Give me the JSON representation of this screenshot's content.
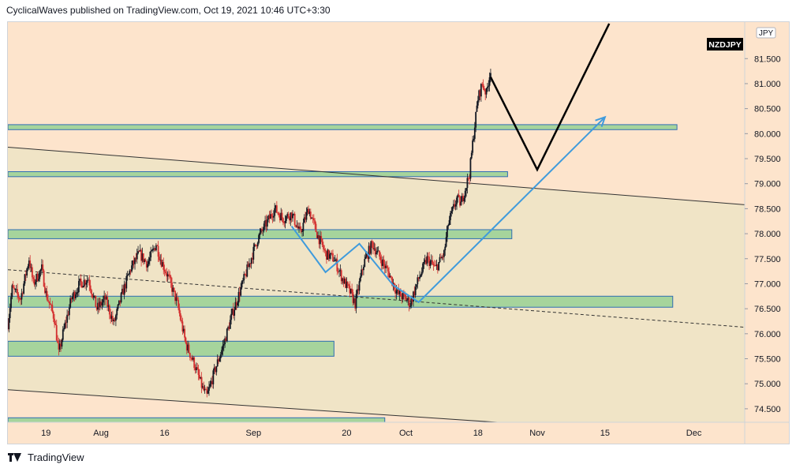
{
  "header": {
    "publisher_line": "CyclicalWaves published on TradingView.com, Oct 19, 2021 10:46 UTC+3:30"
  },
  "footer": {
    "brand": "TradingView",
    "logo_icon": "tradingview-logo-icon"
  },
  "colors": {
    "background": "#fde4cc",
    "channel_fill": "#f0e4c6",
    "zone_fill": "#a6d49c",
    "zone_border": "#2f6db3",
    "candle_up": "#131722",
    "candle_down": "#d32f2f",
    "pattern_line": "#3f9bdc",
    "projection_line": "#000000",
    "symbol_badge": "#000000"
  },
  "chart_data": {
    "type": "candlestick",
    "symbol": "NZDJPY",
    "currency": "JPY",
    "grid": false,
    "y_ticks": [
      "81.500",
      "81.000",
      "80.500",
      "80.000",
      "79.500",
      "79.000",
      "78.500",
      "78.000",
      "77.500",
      "77.000",
      "76.500",
      "76.000",
      "75.500",
      "75.000",
      "74.500"
    ],
    "ylim": [
      74.23,
      82.23
    ],
    "xlim": [
      0,
      174
    ],
    "x_ticks": [
      {
        "label": "19",
        "t": 9
      },
      {
        "label": "Aug",
        "t": 22
      },
      {
        "label": "16",
        "t": 37
      },
      {
        "label": "Sep",
        "t": 58
      },
      {
        "label": "20",
        "t": 80
      },
      {
        "label": "Oct",
        "t": 94
      },
      {
        "label": "18",
        "t": 111
      },
      {
        "label": "Nov",
        "t": 125
      },
      {
        "label": "15",
        "t": 141
      },
      {
        "label": "Dec",
        "t": 162
      }
    ],
    "last_t": 114,
    "price_path": [
      [
        0,
        76.2
      ],
      [
        1,
        76.9
      ],
      [
        3,
        76.7
      ],
      [
        5,
        77.5
      ],
      [
        6,
        77.0
      ],
      [
        8,
        77.3
      ],
      [
        9,
        76.8
      ],
      [
        11,
        76.3
      ],
      [
        12,
        75.6
      ],
      [
        13,
        76.0
      ],
      [
        15,
        76.7
      ],
      [
        17,
        77.0
      ],
      [
        19,
        77.1
      ],
      [
        21,
        76.5
      ],
      [
        23,
        76.7
      ],
      [
        25,
        76.2
      ],
      [
        27,
        76.8
      ],
      [
        29,
        77.3
      ],
      [
        31,
        77.6
      ],
      [
        33,
        77.4
      ],
      [
        35,
        77.8
      ],
      [
        36,
        77.5
      ],
      [
        38,
        77.1
      ],
      [
        40,
        76.6
      ],
      [
        42,
        75.8
      ],
      [
        44,
        75.4
      ],
      [
        46,
        74.9
      ],
      [
        47,
        74.75
      ],
      [
        49,
        75.3
      ],
      [
        51,
        75.8
      ],
      [
        53,
        76.4
      ],
      [
        55,
        76.9
      ],
      [
        57,
        77.4
      ],
      [
        59,
        77.9
      ],
      [
        61,
        78.2
      ],
      [
        63,
        78.5
      ],
      [
        65,
        78.3
      ],
      [
        67,
        78.4
      ],
      [
        69,
        78.0
      ],
      [
        71,
        78.5
      ],
      [
        73,
        78.0
      ],
      [
        75,
        77.6
      ],
      [
        77,
        77.5
      ],
      [
        79,
        77.1
      ],
      [
        81,
        76.8
      ],
      [
        82,
        76.6
      ],
      [
        84,
        77.4
      ],
      [
        86,
        77.8
      ],
      [
        88,
        77.5
      ],
      [
        90,
        77.2
      ],
      [
        92,
        76.8
      ],
      [
        94,
        76.7
      ],
      [
        95,
        76.6
      ],
      [
        97,
        77.1
      ],
      [
        99,
        77.5
      ],
      [
        101,
        77.3
      ],
      [
        103,
        77.6
      ],
      [
        104,
        78.2
      ],
      [
        106,
        78.7
      ],
      [
        107,
        78.6
      ],
      [
        108,
        78.9
      ],
      [
        109,
        79.2
      ],
      [
        110,
        80.0
      ],
      [
        111,
        80.7
      ],
      [
        112,
        81.0
      ],
      [
        113,
        80.8
      ],
      [
        114,
        81.3
      ]
    ],
    "zones": [
      {
        "t0": 0,
        "t1": 158,
        "lo": 80.08,
        "hi": 80.18
      },
      {
        "t0": 0,
        "t1": 118,
        "lo": 79.14,
        "hi": 79.24
      },
      {
        "t0": 0,
        "t1": 119,
        "lo": 77.9,
        "hi": 78.08
      },
      {
        "t0": 0,
        "t1": 157,
        "lo": 76.53,
        "hi": 76.75
      },
      {
        "t0": 0,
        "t1": 77,
        "lo": 75.55,
        "hi": 75.85
      },
      {
        "t0": 0,
        "t1": 89,
        "lo": 74.22,
        "hi": 74.32
      }
    ],
    "channel_upper": [
      [
        0,
        79.73
      ],
      [
        174,
        78.58
      ]
    ],
    "channel_lower": [
      [
        0,
        74.88
      ],
      [
        174,
        73.9
      ]
    ],
    "dashed_trendline": [
      [
        0,
        77.28
      ],
      [
        174,
        76.13
      ]
    ],
    "m_pattern": [
      [
        67,
        78.15
      ],
      [
        75,
        77.23
      ],
      [
        83,
        77.8
      ],
      [
        91,
        76.97
      ],
      [
        97,
        76.63
      ],
      [
        141,
        80.33
      ]
    ],
    "projection": [
      [
        114,
        81.13
      ],
      [
        125,
        79.28
      ],
      [
        142,
        82.2
      ]
    ]
  }
}
